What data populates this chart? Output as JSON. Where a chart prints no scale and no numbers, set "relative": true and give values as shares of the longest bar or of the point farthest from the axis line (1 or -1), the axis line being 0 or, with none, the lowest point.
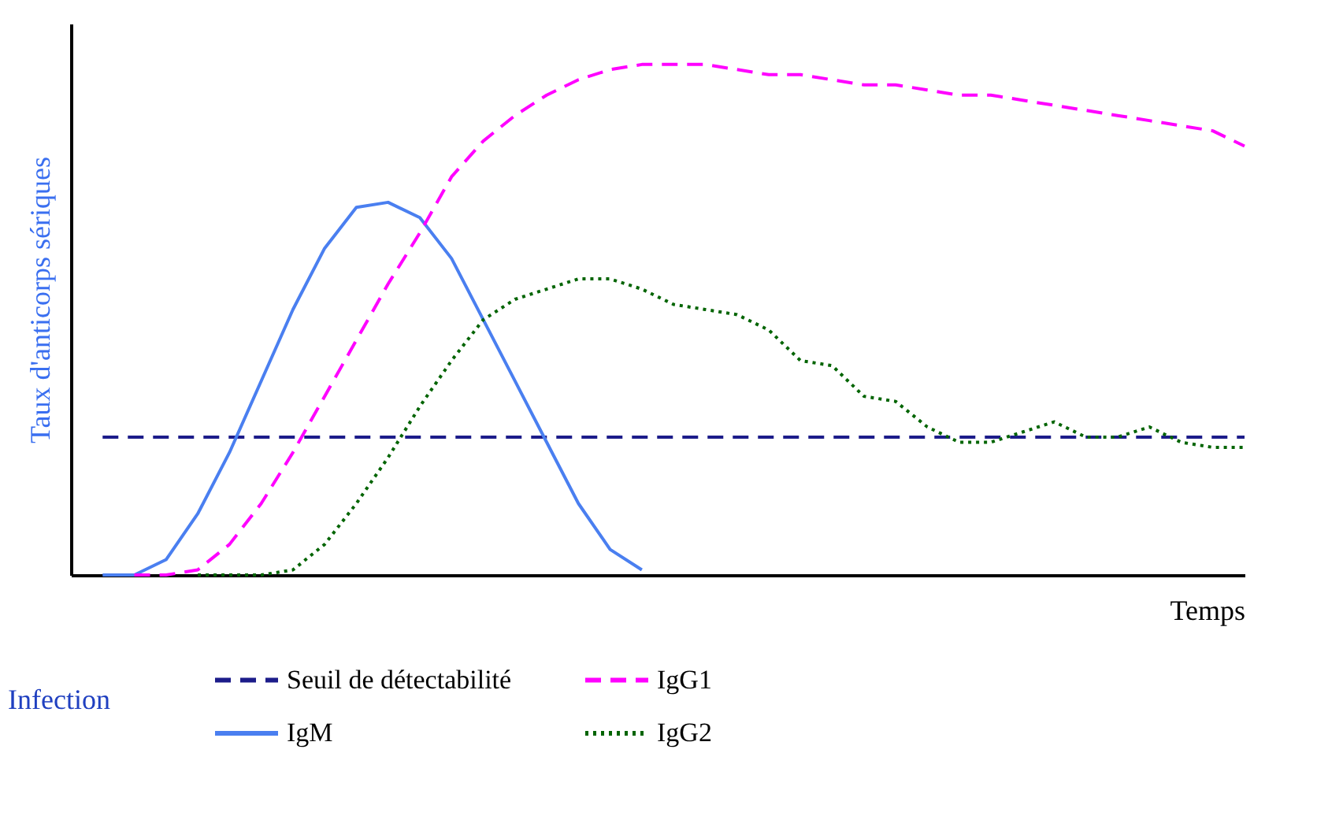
{
  "chart_data": {
    "type": "line",
    "relative": true,
    "xlabel": "Temps",
    "ylabel": "Taux d'anticorps sériques",
    "categories": [
      null,
      null,
      null,
      null,
      null,
      null,
      null,
      null,
      null,
      null,
      null,
      null,
      null,
      null,
      null,
      null,
      null,
      null,
      null,
      null,
      null,
      null,
      null,
      null,
      null,
      null,
      null,
      null,
      null,
      null,
      null,
      null,
      null,
      null,
      null,
      null,
      null,
      null
    ],
    "series": [
      {
        "name": "Seuil de détectabilité",
        "color": "#1c1c8a",
        "line_style": "dashed",
        "values": [
          null,
          0.27,
          0.27,
          0.27,
          0.27,
          0.27,
          0.27,
          0.27,
          0.27,
          0.27,
          0.27,
          0.27,
          0.27,
          0.27,
          0.27,
          0.27,
          0.27,
          0.27,
          0.27,
          0.27,
          0.27,
          0.27,
          0.27,
          0.27,
          0.27,
          0.27,
          0.27,
          0.27,
          0.27,
          0.27,
          0.27,
          0.27,
          0.27,
          0.27,
          0.27,
          0.27,
          0.27,
          0.27
        ]
      },
      {
        "name": "IgM",
        "color": "#4a7ff0",
        "line_style": "solid",
        "values": [
          null,
          0,
          0,
          0.03,
          0.12,
          0.24,
          0.38,
          0.52,
          0.64,
          0.72,
          0.73,
          0.7,
          0.62,
          0.5,
          0.38,
          0.26,
          0.14,
          0.05,
          0.01,
          null,
          null,
          null,
          null,
          null,
          null,
          null,
          null,
          null,
          null,
          null,
          null,
          null,
          null,
          null,
          null,
          null,
          null,
          null
        ]
      },
      {
        "name": "IgG1",
        "color": "#ff00ff",
        "line_style": "dashed",
        "values": [
          null,
          null,
          0,
          0,
          0.01,
          0.06,
          0.14,
          0.24,
          0.35,
          0.46,
          0.57,
          0.67,
          0.78,
          0.85,
          0.9,
          0.94,
          0.97,
          0.99,
          1.0,
          1.0,
          1.0,
          0.99,
          0.98,
          0.98,
          0.97,
          0.96,
          0.96,
          0.95,
          0.94,
          0.94,
          0.93,
          0.92,
          0.91,
          0.9,
          0.89,
          0.88,
          0.87,
          0.84
        ]
      },
      {
        "name": "IgG2",
        "color": "#006400",
        "line_style": "dotted",
        "values": [
          null,
          null,
          null,
          null,
          0,
          0,
          0,
          0.01,
          0.06,
          0.14,
          0.23,
          0.33,
          0.42,
          0.5,
          0.54,
          0.56,
          0.58,
          0.58,
          0.56,
          0.53,
          0.52,
          0.51,
          0.48,
          0.42,
          0.41,
          0.35,
          0.34,
          0.29,
          0.26,
          0.26,
          0.28,
          0.3,
          0.27,
          0.27,
          0.29,
          0.26,
          0.25,
          0.25
        ]
      }
    ],
    "legend": "bottom",
    "grid": false,
    "marker": "none",
    "annotations": [
      "Infection"
    ]
  }
}
